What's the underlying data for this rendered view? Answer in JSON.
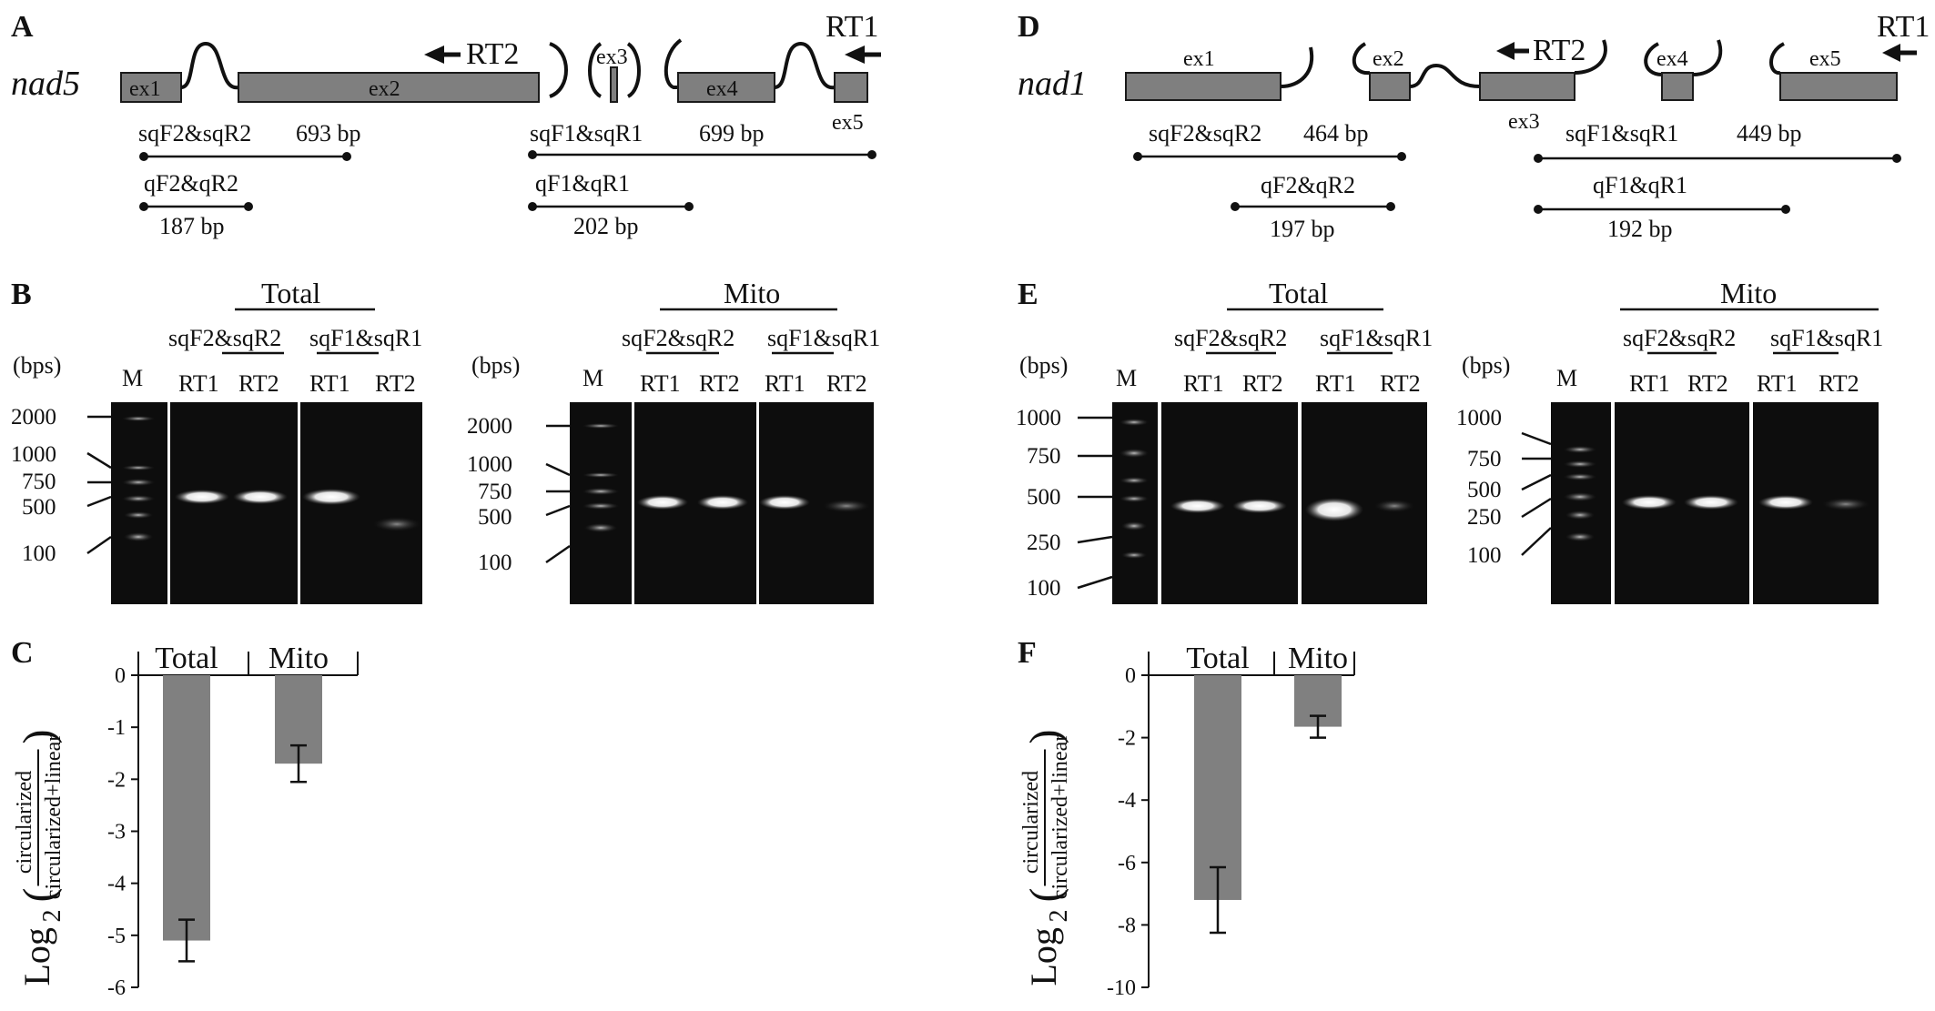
{
  "panels": {
    "A": "A",
    "B": "B",
    "C": "C",
    "D": "D",
    "E": "E",
    "F": "F"
  },
  "nad5": {
    "gene": "nad5",
    "exons": [
      "ex1",
      "ex2",
      "ex3",
      "ex4",
      "ex5"
    ],
    "rt1": "RT1",
    "rt2": "RT2",
    "primers": [
      {
        "name": "sqF2&sqR2",
        "size": "693 bp"
      },
      {
        "name": "qF2&qR2",
        "size": "187 bp"
      },
      {
        "name": "sqF1&sqR1",
        "size": "699 bp"
      },
      {
        "name": "qF1&qR1",
        "size": "202 bp"
      }
    ]
  },
  "nad1": {
    "gene": "nad1",
    "exons": [
      "ex1",
      "ex2",
      "ex3",
      "ex4",
      "ex5"
    ],
    "rt1": "RT1",
    "rt2": "RT2",
    "primers": [
      {
        "name": "sqF2&sqR2",
        "size": "464 bp"
      },
      {
        "name": "qF2&qR2",
        "size": "197 bp"
      },
      {
        "name": "sqF1&sqR1",
        "size": "449 bp"
      },
      {
        "name": "qF1&qR1",
        "size": "192 bp"
      }
    ]
  },
  "gels": {
    "total": "Total",
    "mito": "Mito",
    "bps": "(bps)",
    "marker": "M",
    "pair2": "sqF2&sqR2",
    "pair1": "sqF1&sqR1",
    "rt1": "RT1",
    "rt2": "RT2",
    "B_total_ladder": [
      "2000",
      "1000",
      "750",
      "500",
      "100"
    ],
    "B_mito_ladder": [
      "2000",
      "1000",
      "750",
      "500",
      "100"
    ],
    "E_total_ladder": [
      "1000",
      "750",
      "500",
      "250",
      "100"
    ],
    "E_mito_ladder": [
      "1000",
      "750",
      "500",
      "250",
      "100"
    ]
  },
  "chart_data": [
    {
      "type": "bar",
      "panel": "C",
      "categories": [
        "Total",
        "Mito"
      ],
      "values": [
        -5.1,
        -1.7
      ],
      "errors": [
        0.4,
        0.35
      ],
      "ylabel": "Log2(circularized / circularized+linear)",
      "ylim": [
        -6,
        0
      ],
      "yticks": [
        "0",
        "-1",
        "-2",
        "-3",
        "-4",
        "-5",
        "-6"
      ],
      "bar_color": "#808080"
    },
    {
      "type": "bar",
      "panel": "F",
      "categories": [
        "Total",
        "Mito"
      ],
      "values": [
        -7.2,
        -1.65
      ],
      "errors": [
        1.05,
        0.35
      ],
      "ylabel": "Log2(circularized / circularized+linear)",
      "ylim": [
        -10,
        0
      ],
      "yticks": [
        "0",
        "-2",
        "-4",
        "-6",
        "-8",
        "-10"
      ],
      "bar_color": "#808080"
    }
  ],
  "ylabel_parts": {
    "log": "Log",
    "sub": "2",
    "num": "circularized",
    "den": "circularized+linear"
  }
}
